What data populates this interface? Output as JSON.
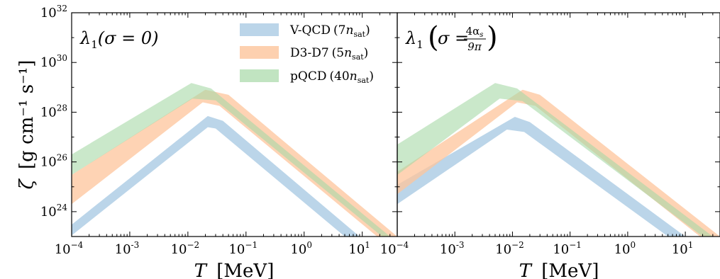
{
  "chart_data": {
    "type": "area",
    "shared_y_axis": {
      "label_symbol": "ζ",
      "label_units": "[g cm⁻¹ s⁻¹]",
      "scale": "log",
      "ylim": [
        1e+23,
        1e+32
      ],
      "tick_labels": [
        {
          "value": 1e+24,
          "base": "10",
          "exp": "24"
        },
        {
          "value": 1e+26,
          "base": "10",
          "exp": "26"
        },
        {
          "value": 1e+28,
          "base": "10",
          "exp": "28"
        },
        {
          "value": 1e+30,
          "base": "10",
          "exp": "30"
        },
        {
          "value": 1e+32,
          "base": "10",
          "exp": "32"
        }
      ]
    },
    "shared_x_axis": {
      "label_symbol": "T",
      "label_units": "[MeV]",
      "scale": "log",
      "xlim": [
        0.0001,
        40
      ],
      "tick_labels": [
        {
          "value": 0.0001,
          "base": "10",
          "exp": "−4"
        },
        {
          "value": 0.001,
          "base": "10",
          "exp": "-3"
        },
        {
          "value": 0.01,
          "base": "10",
          "exp": "−2"
        },
        {
          "value": 0.1,
          "base": "10",
          "exp": "−1"
        },
        {
          "value": 1,
          "base": "10",
          "exp": "0"
        },
        {
          "value": 10,
          "base": "10",
          "exp": "1"
        }
      ]
    },
    "legend": {
      "placement": "top-right of left panel",
      "entries": [
        {
          "name": "V-QCD",
          "detail_prefix": "(7",
          "detail_var": "n",
          "detail_sub": "sat",
          "detail_suffix": ")",
          "color": "#9ec3e0"
        },
        {
          "name": "D3-D7",
          "detail_prefix": "(5",
          "detail_var": "n",
          "detail_sub": "sat",
          "detail_suffix": ")",
          "color": "#fdc49b"
        },
        {
          "name": "pQCD",
          "detail_prefix": "(40",
          "detail_var": "n",
          "detail_sub": "sat",
          "detail_suffix": ")",
          "color": "#a6d9a6"
        }
      ]
    },
    "panels": [
      {
        "annotation": "λ1(σ = 0)",
        "annotation_main": "λ",
        "annotation_sub": "1",
        "annotation_args": "(σ = 0)",
        "series": [
          {
            "name": "V-QCD",
            "color": "#9ec3e0",
            "opacity": 0.7,
            "upper": [
              [
                0.0001,
                3e+23
              ],
              [
                0.022,
                7e+27
              ],
              [
                0.04,
                4.5e+27
              ],
              [
                9,
                1e+23
              ]
            ],
            "lower": [
              [
                0.0001,
                1.1e+23
              ],
              [
                0.022,
                2.5e+27
              ],
              [
                0.03,
                2.2e+27
              ],
              [
                5,
                1e+23
              ]
            ]
          },
          {
            "name": "D3-D7",
            "color": "#fdc49b",
            "opacity": 0.75,
            "upper": [
              [
                0.0001,
                3e+25
              ],
              [
                0.02,
                8e+28
              ],
              [
                0.05,
                5e+28
              ],
              [
                40,
                1e+23
              ]
            ],
            "lower": [
              [
                0.0001,
                2e+24
              ],
              [
                0.018,
                2.5e+28
              ],
              [
                0.035,
                1.8e+28
              ],
              [
                18,
                1e+23
              ]
            ]
          },
          {
            "name": "pQCD",
            "color": "#a6d9a6",
            "opacity": 0.6,
            "upper": [
              [
                0.0001,
                2e+26
              ],
              [
                0.0115,
                1.5e+29
              ],
              [
                0.025,
                9e+28
              ],
              [
                30,
                1e+23
              ]
            ],
            "lower": [
              [
                0.0001,
                3e+25
              ],
              [
                0.012,
                3.5e+28
              ],
              [
                0.03,
                3e+28
              ],
              [
                22,
                1e+23
              ]
            ]
          }
        ]
      },
      {
        "annotation": "λ1(σ = 4αs/9π)",
        "annotation_main": "λ",
        "annotation_sub": "1",
        "annotation_arg_prefix": "σ =",
        "annotation_frac_num": "4α",
        "annotation_frac_num_sub": "s",
        "annotation_frac_den": "9π",
        "series": [
          {
            "name": "V-QCD",
            "color": "#9ec3e0",
            "opacity": 0.7,
            "upper": [
              [
                0.0001,
                1.2e+25
              ],
              [
                0.011,
                6.5e+27
              ],
              [
                0.02,
                4e+27
              ],
              [
                10,
                1e+23
              ]
            ],
            "lower": [
              [
                0.0001,
                2e+24
              ],
              [
                0.008,
                2e+27
              ],
              [
                0.016,
                1.6e+27
              ],
              [
                5,
                1e+23
              ]
            ]
          },
          {
            "name": "D3-D7",
            "color": "#fdc49b",
            "opacity": 0.75,
            "upper": [
              [
                0.0001,
                4e+25
              ],
              [
                0.015,
                8e+28
              ],
              [
                0.03,
                5e+28
              ],
              [
                40,
                1e+23
              ]
            ],
            "lower": [
              [
                0.0001,
                5e+24
              ],
              [
                0.012,
                2.5e+28
              ],
              [
                0.025,
                1.8e+28
              ],
              [
                18,
                1e+23
              ]
            ]
          },
          {
            "name": "pQCD",
            "color": "#a6d9a6",
            "opacity": 0.6,
            "upper": [
              [
                0.0001,
                5e+26
              ],
              [
                0.005,
                1.5e+29
              ],
              [
                0.012,
                9e+28
              ],
              [
                30,
                1e+23
              ]
            ],
            "lower": [
              [
                0.0001,
                3e+25
              ],
              [
                0.006,
                3.5e+28
              ],
              [
                0.015,
                2.8e+28
              ],
              [
                20,
                1e+23
              ]
            ]
          }
        ]
      }
    ]
  }
}
